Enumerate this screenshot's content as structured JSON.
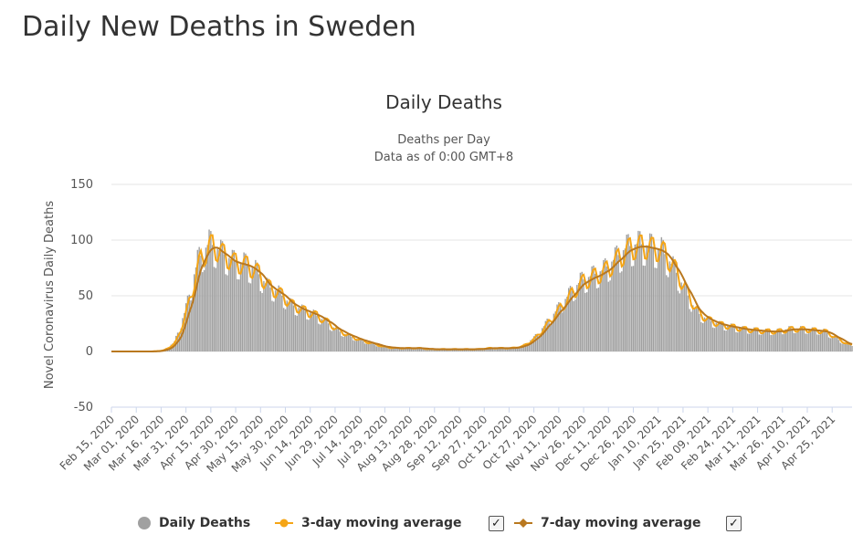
{
  "page": {
    "title": "Daily New Deaths in Sweden"
  },
  "chart_data": {
    "type": "bar",
    "title": "Daily Deaths",
    "subtitle_lines": [
      "Deaths per Day",
      "Data as of 0:00 GMT+8"
    ],
    "ylabel": "Novel Coronavirus Daily Deaths",
    "xlabel": "",
    "ylim": [
      -50,
      150
    ],
    "y_ticks": [
      150,
      100,
      50,
      0,
      -50
    ],
    "grid": true,
    "legend_position": "bottom",
    "x_start": "2020-02-15",
    "x_end": "2021-05-07",
    "x_ticks": [
      "Feb 15, 2020",
      "Mar 01, 2020",
      "Mar 16, 2020",
      "Mar 31, 2020",
      "Apr 15, 2020",
      "Apr 30, 2020",
      "May 15, 2020",
      "May 30, 2020",
      "Jun 14, 2020",
      "Jun 29, 2020",
      "Jul 14, 2020",
      "Jul 29, 2020",
      "Aug 13, 2020",
      "Aug 28, 2020",
      "Sep 12, 2020",
      "Sep 27, 2020",
      "Oct 12, 2020",
      "Oct 27, 2020",
      "Nov 11, 2020",
      "Nov 26, 2020",
      "Dec 11, 2020",
      "Dec 26, 2020",
      "Jan 10, 2021",
      "Jan 25, 2021",
      "Feb 09, 2021",
      "Feb 24, 2021",
      "Mar 11, 2021",
      "Mar 26, 2021",
      "Apr 10, 2021",
      "Apr 25, 2021"
    ],
    "daily_deaths_weekly_estimate": {
      "week_start": [
        "2020-02-15",
        "2020-02-22",
        "2020-02-29",
        "2020-03-07",
        "2020-03-14",
        "2020-03-21",
        "2020-03-28",
        "2020-04-04",
        "2020-04-11",
        "2020-04-18",
        "2020-04-25",
        "2020-05-02",
        "2020-05-09",
        "2020-05-16",
        "2020-05-23",
        "2020-05-30",
        "2020-06-06",
        "2020-06-13",
        "2020-06-20",
        "2020-06-27",
        "2020-07-04",
        "2020-07-11",
        "2020-07-18",
        "2020-07-25",
        "2020-08-01",
        "2020-08-08",
        "2020-08-15",
        "2020-08-22",
        "2020-08-29",
        "2020-09-05",
        "2020-09-12",
        "2020-09-19",
        "2020-09-26",
        "2020-10-03",
        "2020-10-10",
        "2020-10-17",
        "2020-10-24",
        "2020-10-31",
        "2020-11-07",
        "2020-11-14",
        "2020-11-21",
        "2020-11-28",
        "2020-12-05",
        "2020-12-12",
        "2020-12-19",
        "2020-12-26",
        "2021-01-02",
        "2021-01-09",
        "2021-01-16",
        "2021-01-23",
        "2021-01-30",
        "2021-02-06",
        "2021-02-13",
        "2021-02-20",
        "2021-02-27",
        "2021-03-06",
        "2021-03-13",
        "2021-03-20",
        "2021-03-27",
        "2021-04-03",
        "2021-04-10",
        "2021-04-17",
        "2021-04-24",
        "2021-05-01"
      ],
      "values": [
        0,
        0,
        0,
        0,
        1,
        8,
        38,
        80,
        96,
        88,
        80,
        78,
        72,
        58,
        52,
        42,
        37,
        33,
        27,
        19,
        14,
        10,
        7,
        4,
        3,
        3,
        3,
        2,
        2,
        2,
        2,
        2,
        3,
        3,
        3,
        5,
        12,
        24,
        37,
        50,
        62,
        67,
        72,
        82,
        92,
        95,
        93,
        90,
        75,
        55,
        35,
        28,
        24,
        22,
        20,
        19,
        18,
        18,
        20,
        20,
        19,
        18,
        12,
        6
      ]
    },
    "series": [
      {
        "name": "Daily Deaths",
        "type": "bar",
        "color": "#a0a0a0"
      },
      {
        "name": "3-day moving average",
        "type": "line",
        "color": "#f5a516"
      },
      {
        "name": "7-day moving average",
        "type": "line",
        "color": "#b9781f"
      }
    ]
  },
  "legend": {
    "items": [
      {
        "label": "Daily Deaths",
        "color": "#a0a0a0",
        "marker": "circle"
      },
      {
        "label": "3-day moving average",
        "color": "#f5a516",
        "marker": "circle"
      },
      {
        "label": "7-day moving average",
        "color": "#b9781f",
        "marker": "diamond"
      }
    ],
    "checkbox_mark": "✓"
  }
}
